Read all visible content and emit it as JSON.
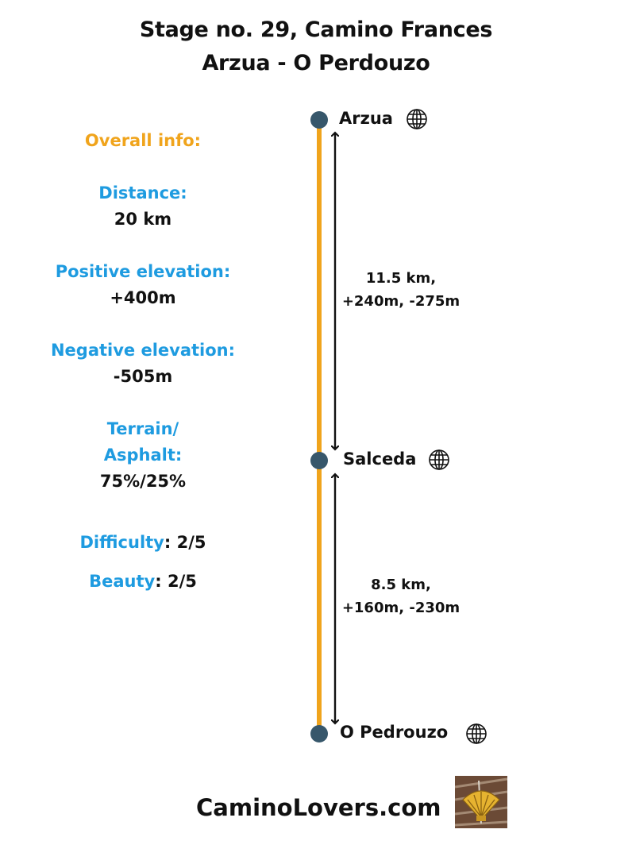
{
  "title": {
    "line1": "Stage no. 29, Camino Frances",
    "line2": "Arzua - O Perdouzo"
  },
  "info": {
    "heading": "Overall info:",
    "distance_label": "Distance:",
    "distance_value": "20 km",
    "pos_elev_label": "Positive elevation:",
    "pos_elev_value": "+400m",
    "neg_elev_label": "Negative elevation:",
    "neg_elev_value": "-505m",
    "terrain_label_1": "Terrain/",
    "terrain_label_2": "Asphalt:",
    "terrain_value": "75%/25%",
    "difficulty_label": "Difficulty",
    "difficulty_value": ": 2/5",
    "beauty_label": "Beauty",
    "beauty_value": ": 2/5"
  },
  "route": {
    "stops": [
      {
        "name": "Arzua",
        "icon": "globe-icon"
      },
      {
        "name": "Salceda",
        "icon": "globe-icon"
      },
      {
        "name": "O Pedrouzo",
        "icon": "globe-icon"
      }
    ],
    "segments": [
      {
        "line1": "11.5 km,",
        "line2": "+240m, -275m"
      },
      {
        "line1": "8.5 km,",
        "line2": "+160m, -230m"
      }
    ],
    "colors": {
      "route_line": "#f0a41c",
      "stop_dot": "#37576b",
      "arrow": "#111111"
    }
  },
  "footer": {
    "brand": "CaminoLovers.com",
    "logo_icon": "scallop-shell-icon"
  }
}
